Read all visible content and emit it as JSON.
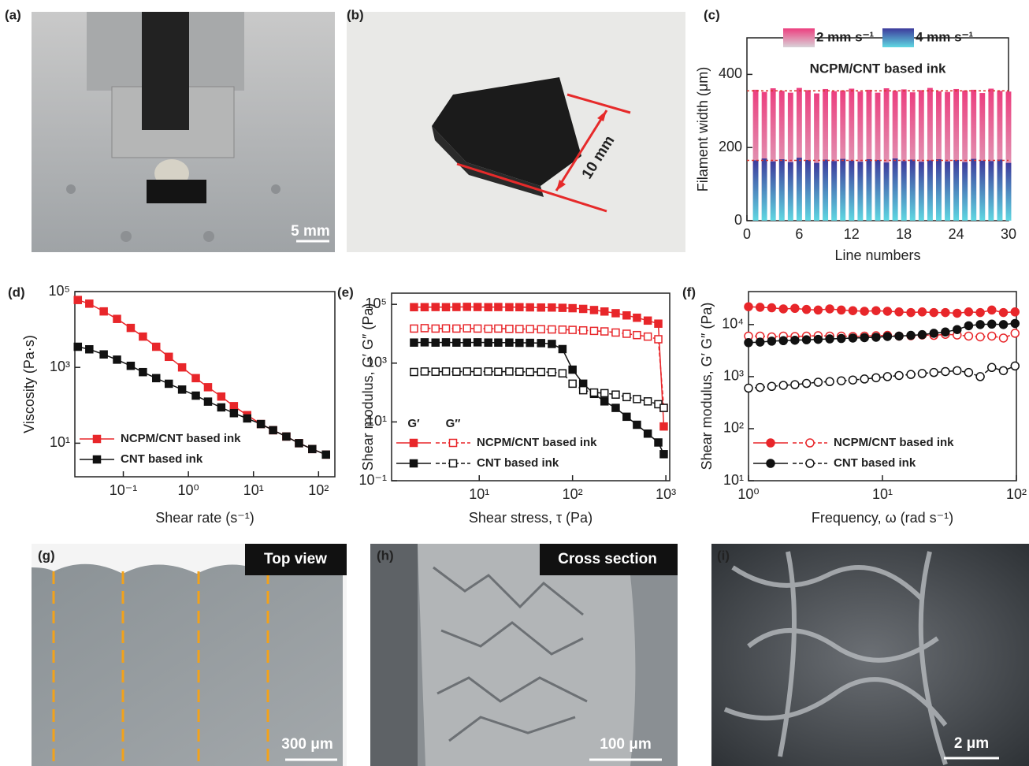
{
  "photos": [
    {
      "label": "(a)",
      "scale_bar": "5 mm"
    },
    {
      "label": "(b)",
      "annotation": "10 mm"
    },
    {
      "label": "(g)",
      "tag": "Top view",
      "scale_bar": "300 μm"
    },
    {
      "label": "(h)",
      "tag": "Cross section",
      "scale_bar": "100 μm"
    },
    {
      "label": "(i)",
      "scale_bar": "2 μm"
    }
  ],
  "chart_data": [
    {
      "type": "bar",
      "panel": "(c)",
      "title": "NCPM/CNT based ink",
      "x_label": "Line numbers",
      "y_label": "Filament width (μm)",
      "x": [
        1,
        2,
        3,
        4,
        5,
        6,
        7,
        8,
        9,
        10,
        11,
        12,
        13,
        14,
        15,
        16,
        17,
        18,
        19,
        20,
        21,
        22,
        23,
        24,
        25,
        26,
        27,
        28,
        29,
        30
      ],
      "series": [
        {
          "name": "2 mm s⁻¹",
          "color": "#ec3f7f",
          "color_bottom": "#d9d2d8",
          "values": [
            358,
            352,
            362,
            355,
            350,
            363,
            357,
            348,
            360,
            354,
            356,
            361,
            353,
            358,
            350,
            362,
            355,
            359,
            351,
            357,
            363,
            354,
            352,
            360,
            356,
            358,
            349,
            361,
            355,
            353
          ]
        },
        {
          "name": "4 mm s⁻¹",
          "color": "#3d3a9c",
          "color_bottom": "#5fd8e2",
          "values": [
            165,
            170,
            162,
            168,
            160,
            172,
            166,
            158,
            167,
            163,
            169,
            164,
            161,
            168,
            166,
            159,
            170,
            163,
            167,
            161,
            165,
            168,
            162,
            166,
            160,
            169,
            164,
            163,
            167,
            158
          ]
        }
      ],
      "hlines": [
        355,
        165
      ],
      "hline_color": "#d8342c",
      "xlim": [
        0,
        30
      ],
      "xticks": [
        0,
        6,
        12,
        18,
        24,
        30
      ],
      "ylim": [
        0,
        500
      ],
      "yticks": [
        0,
        200,
        400
      ],
      "legend": "upper center"
    },
    {
      "type": "line",
      "panel": "(d)",
      "x_label": "Shear rate (s⁻¹)",
      "y_label": "Viscosity (Pa·s)",
      "xlog": true,
      "ylog": true,
      "marker": "square",
      "x": [
        0.02,
        0.03,
        0.05,
        0.08,
        0.13,
        0.2,
        0.32,
        0.5,
        0.8,
        1.3,
        2,
        3.2,
        5,
        8,
        13,
        20,
        32,
        50,
        80,
        130
      ],
      "series": [
        {
          "name": "NCPM/CNT based ink",
          "color": "#e8262a",
          "values": [
            60000,
            48000,
            30000,
            19000,
            11000,
            6500,
            3500,
            1900,
            1000,
            520,
            300,
            170,
            95,
            55,
            32,
            22,
            15,
            10,
            7,
            5
          ]
        },
        {
          "name": "CNT based ink",
          "color": "#111111",
          "values": [
            3500,
            3000,
            2200,
            1600,
            1100,
            750,
            520,
            370,
            260,
            180,
            125,
            88,
            62,
            45,
            32,
            22,
            15,
            10,
            7,
            5
          ]
        }
      ],
      "xlim": [
        0.018,
        178
      ],
      "xticks": [
        {
          "value": 0.1,
          "label": "10⁻¹"
        },
        {
          "value": 1,
          "label": "10⁰"
        },
        {
          "value": 10,
          "label": "10¹"
        },
        {
          "value": 100,
          "label": "10²"
        }
      ],
      "ylim": [
        1.3,
        100000
      ],
      "yticks": [
        {
          "value": 10,
          "label": "10¹"
        },
        {
          "value": 1000,
          "label": "10³"
        },
        {
          "value": 100000,
          "label": "10⁵"
        }
      ],
      "legend": "lower left"
    },
    {
      "type": "line",
      "panel": "(e)",
      "x_label": "Shear stress, τ (Pa)",
      "y_label": "Shear modulus, G′ G″ (Pa)",
      "xlog": true,
      "ylog": true,
      "marker": "square",
      "value_names": [
        "G′",
        "G″"
      ],
      "x": [
        2,
        2.6,
        3.4,
        4.4,
        5.7,
        7.4,
        9.6,
        12.5,
        16,
        21,
        27,
        35,
        46,
        60,
        78,
        100,
        130,
        170,
        220,
        290,
        380,
        490,
        640,
        830,
        950
      ],
      "series": [
        {
          "name": "NCPM/CNT based ink",
          "color": "#e8262a",
          "values": [
            80000,
            80000,
            81000,
            80000,
            81000,
            82000,
            81000,
            80000,
            81000,
            80000,
            80000,
            79000,
            78000,
            78000,
            76000,
            74000,
            70000,
            64000,
            57000,
            50000,
            42000,
            35000,
            28000,
            22000,
            7
          ],
          "values2": [
            15000,
            15500,
            15000,
            15200,
            15000,
            15300,
            15000,
            14800,
            15000,
            14700,
            14500,
            14500,
            14200,
            14000,
            13800,
            13500,
            13000,
            12500,
            12000,
            11000,
            10000,
            9000,
            8000,
            6500,
            30
          ]
        },
        {
          "name": "CNT based ink",
          "color": "#111111",
          "values": [
            5000,
            5100,
            5000,
            5100,
            5000,
            5000,
            5100,
            5000,
            5000,
            5000,
            4900,
            4900,
            4800,
            4500,
            3000,
            600,
            200,
            90,
            50,
            30,
            15,
            8,
            4,
            2,
            0.8
          ],
          "values2": [
            500,
            520,
            510,
            520,
            510,
            520,
            510,
            520,
            510,
            520,
            510,
            500,
            500,
            490,
            450,
            200,
            120,
            100,
            95,
            85,
            70,
            60,
            50,
            40,
            30
          ]
        }
      ],
      "xlim": [
        1.15,
        1100
      ],
      "xticks": [
        {
          "value": 10,
          "label": "10¹"
        },
        {
          "value": 100,
          "label": "10²"
        },
        {
          "value": 1000,
          "label": "10³"
        }
      ],
      "ylim": [
        0.1,
        240000
      ],
      "yticks": [
        {
          "value": 0.1,
          "label": "10⁻¹"
        },
        {
          "value": 10,
          "label": "10¹"
        },
        {
          "value": 1000,
          "label": "10³"
        },
        {
          "value": 100000,
          "label": "10⁵"
        }
      ],
      "legend": "lower left"
    },
    {
      "type": "line",
      "panel": "(f)",
      "x_label": "Frequency, ω (rad s⁻¹)",
      "y_label": "Shear modulus, G′ G″ (Pa)",
      "xlog": true,
      "ylog": true,
      "marker": "circle",
      "x": [
        1,
        1.22,
        1.49,
        1.82,
        2.22,
        2.71,
        3.31,
        4.04,
        4.93,
        6.01,
        7.34,
        8.96,
        10.9,
        13.3,
        16.3,
        19.8,
        24.2,
        29.5,
        36.1,
        44,
        53.7,
        65.5,
        80,
        97.7
      ],
      "series": [
        {
          "name": "NCPM/CNT based ink",
          "color": "#e8262a",
          "values": [
            22000,
            21500,
            21000,
            20000,
            20500,
            19500,
            19000,
            20000,
            19000,
            18500,
            18000,
            18500,
            18000,
            17500,
            17000,
            17500,
            17000,
            17000,
            16500,
            17500,
            17000,
            19000,
            17000,
            17500
          ],
          "values2": [
            6000,
            6000,
            5800,
            6000,
            5900,
            6000,
            6100,
            6000,
            6000,
            5900,
            6000,
            6100,
            6200,
            6000,
            6100,
            6300,
            6200,
            6500,
            6300,
            6000,
            5800,
            6000,
            5500,
            6800
          ]
        },
        {
          "name": "CNT based ink",
          "color": "#111111",
          "values": [
            4500,
            4600,
            4800,
            4900,
            5000,
            5100,
            5200,
            5300,
            5400,
            5500,
            5600,
            5700,
            5900,
            6000,
            6200,
            6400,
            6800,
            7200,
            8000,
            9500,
            10000,
            10200,
            10000,
            10500
          ],
          "values2": [
            600,
            620,
            650,
            680,
            700,
            740,
            780,
            800,
            830,
            860,
            900,
            950,
            1000,
            1050,
            1100,
            1150,
            1200,
            1250,
            1300,
            1200,
            1000,
            1500,
            1300,
            1600
          ]
        }
      ],
      "xlim": [
        1,
        100
      ],
      "xticks": [
        {
          "value": 1,
          "label": "10⁰"
        },
        {
          "value": 10,
          "label": "10¹"
        },
        {
          "value": 100,
          "label": "10²"
        }
      ],
      "ylim": [
        10,
        43000
      ],
      "yticks": [
        {
          "value": 10,
          "label": "10¹"
        },
        {
          "value": 100,
          "label": "10²"
        },
        {
          "value": 1000,
          "label": "10³"
        },
        {
          "value": 10000,
          "label": "10⁴"
        }
      ],
      "legend": "lower left"
    }
  ]
}
